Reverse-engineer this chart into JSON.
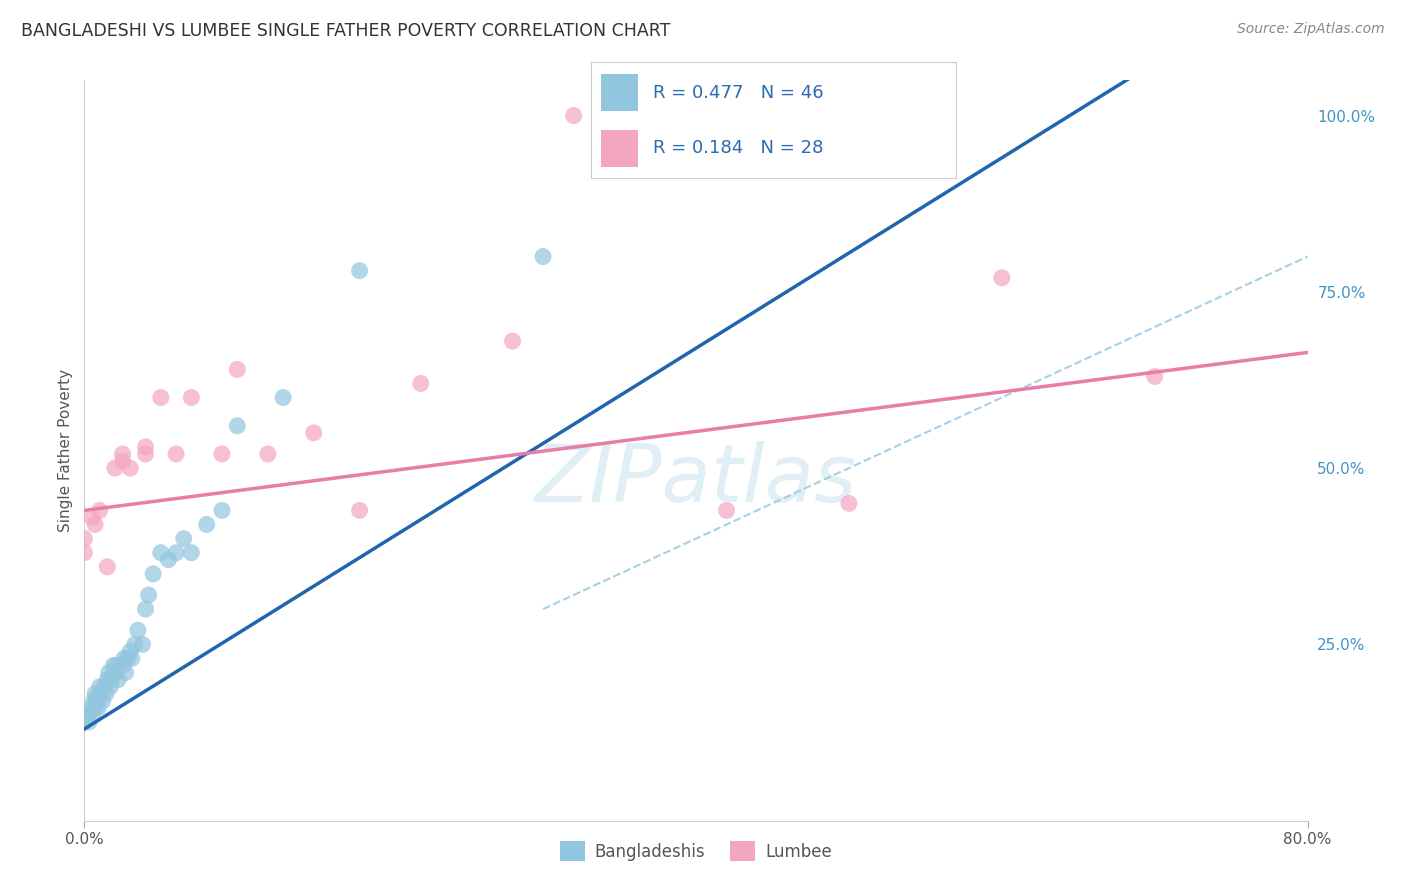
{
  "title": "BANGLADESHI VS LUMBEE SINGLE FATHER POVERTY CORRELATION CHART",
  "source": "Source: ZipAtlas.com",
  "ylabel": "Single Father Poverty",
  "right_yticks": [
    "100.0%",
    "75.0%",
    "50.0%",
    "25.0%"
  ],
  "right_ytick_vals": [
    1.0,
    0.75,
    0.5,
    0.25
  ],
  "watermark": "ZIPatlas",
  "blue_color": "#92c5de",
  "pink_color": "#f4a6c0",
  "blue_line_color": "#2166ac",
  "pink_line_color": "#e87da8",
  "dashed_line_color": "#92c5de",
  "background_color": "#ffffff",
  "grid_color": "#dddddd",
  "bangladeshi_x": [
    0.0,
    0.002,
    0.003,
    0.005,
    0.005,
    0.006,
    0.007,
    0.007,
    0.008,
    0.009,
    0.01,
    0.01,
    0.012,
    0.013,
    0.014,
    0.015,
    0.016,
    0.017,
    0.018,
    0.019,
    0.02,
    0.021,
    0.022,
    0.025,
    0.026,
    0.027,
    0.028,
    0.03,
    0.031,
    0.033,
    0.035,
    0.038,
    0.04,
    0.042,
    0.045,
    0.05,
    0.055,
    0.06,
    0.065,
    0.07,
    0.08,
    0.09,
    0.1,
    0.13,
    0.18,
    0.3
  ],
  "bangladeshi_y": [
    0.14,
    0.15,
    0.14,
    0.16,
    0.15,
    0.17,
    0.16,
    0.18,
    0.17,
    0.16,
    0.18,
    0.19,
    0.17,
    0.19,
    0.18,
    0.2,
    0.21,
    0.19,
    0.2,
    0.22,
    0.21,
    0.22,
    0.2,
    0.22,
    0.23,
    0.21,
    0.23,
    0.24,
    0.23,
    0.25,
    0.27,
    0.25,
    0.3,
    0.32,
    0.35,
    0.38,
    0.37,
    0.38,
    0.4,
    0.38,
    0.42,
    0.44,
    0.56,
    0.6,
    0.78,
    0.8
  ],
  "lumbee_x": [
    0.0,
    0.0,
    0.005,
    0.007,
    0.01,
    0.015,
    0.02,
    0.025,
    0.025,
    0.03,
    0.04,
    0.04,
    0.05,
    0.06,
    0.07,
    0.09,
    0.1,
    0.12,
    0.15,
    0.18,
    0.22,
    0.28,
    0.32,
    0.35,
    0.42,
    0.5,
    0.6,
    0.7
  ],
  "lumbee_y": [
    0.38,
    0.4,
    0.43,
    0.42,
    0.44,
    0.36,
    0.5,
    0.51,
    0.52,
    0.5,
    0.52,
    0.53,
    0.6,
    0.52,
    0.6,
    0.52,
    0.64,
    0.52,
    0.55,
    0.44,
    0.62,
    0.68,
    1.0,
    1.0,
    0.44,
    0.45,
    0.77,
    0.63
  ],
  "xlim": [
    0.0,
    0.8
  ],
  "ylim": [
    0.0,
    1.05
  ],
  "blue_intercept": 0.13,
  "blue_slope": 1.35,
  "pink_intercept": 0.44,
  "pink_slope": 0.28
}
